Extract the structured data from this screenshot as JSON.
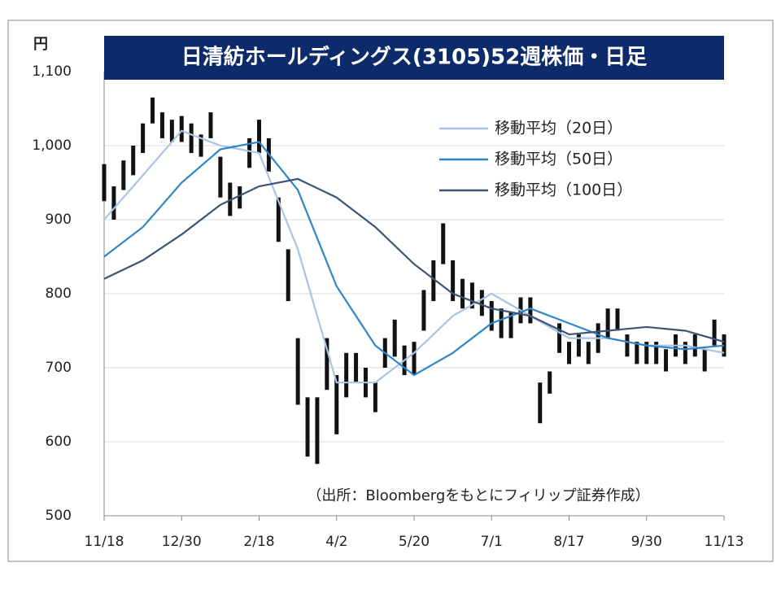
{
  "chart_data": {
    "type": "candlestick",
    "title": "日清紡ホールディングス(3105)52週株価・日足",
    "y_unit": "円",
    "note": "（出所：Bloombergをもとにフィリップ証券作成）",
    "xlim": [
      0,
      8
    ],
    "xticks": [
      {
        "value": 0,
        "label": "11/18"
      },
      {
        "value": 1,
        "label": "12/30"
      },
      {
        "value": 2,
        "label": "2/18"
      },
      {
        "value": 3,
        "label": "4/2"
      },
      {
        "value": 4,
        "label": "5/20"
      },
      {
        "value": 5,
        "label": "7/1"
      },
      {
        "value": 6,
        "label": "8/17"
      },
      {
        "value": 7,
        "label": "9/30"
      },
      {
        "value": 8,
        "label": "11/13"
      }
    ],
    "ylim": [
      500,
      1100
    ],
    "yticks": [
      500,
      600,
      700,
      800,
      900,
      {
        "value": 1000,
        "label": "1,000"
      },
      {
        "value": 1100,
        "label": "1,100"
      }
    ],
    "grid": true,
    "legend": "upper right",
    "price": {
      "color": "#111111",
      "x": [
        0,
        0.125,
        0.25,
        0.375,
        0.5,
        0.625,
        0.75,
        0.875,
        1,
        1.125,
        1.25,
        1.375,
        1.5,
        1.625,
        1.75,
        1.875,
        2,
        2.125,
        2.25,
        2.375,
        2.5,
        2.625,
        2.75,
        2.875,
        3,
        3.125,
        3.25,
        3.375,
        3.5,
        3.625,
        3.75,
        3.875,
        4,
        4.125,
        4.25,
        4.375,
        4.5,
        4.625,
        4.75,
        4.875,
        5,
        5.125,
        5.25,
        5.375,
        5.5,
        5.625,
        5.75,
        5.875,
        6,
        6.125,
        6.25,
        6.375,
        6.5,
        6.625,
        6.75,
        6.875,
        7,
        7.125,
        7.25,
        7.375,
        7.5,
        7.625,
        7.75,
        7.875,
        8
      ],
      "low": [
        925,
        900,
        940,
        960,
        990,
        1030,
        1010,
        1005,
        1005,
        990,
        985,
        1010,
        930,
        905,
        915,
        970,
        990,
        965,
        870,
        790,
        650,
        580,
        570,
        670,
        610,
        660,
        680,
        660,
        640,
        700,
        715,
        690,
        690,
        750,
        790,
        840,
        790,
        780,
        780,
        770,
        750,
        740,
        740,
        760,
        760,
        625,
        665,
        720,
        705,
        715,
        705,
        720,
        740,
        750,
        715,
        705,
        705,
        705,
        695,
        715,
        705,
        715,
        695,
        730,
        715
      ],
      "high": [
        975,
        945,
        980,
        1000,
        1030,
        1065,
        1045,
        1035,
        1040,
        1030,
        1015,
        1045,
        985,
        950,
        945,
        1010,
        1035,
        1010,
        930,
        860,
        740,
        660,
        660,
        740,
        690,
        720,
        720,
        700,
        680,
        740,
        765,
        730,
        735,
        805,
        845,
        895,
        845,
        820,
        815,
        805,
        790,
        780,
        775,
        795,
        795,
        680,
        695,
        760,
        735,
        745,
        735,
        760,
        780,
        780,
        745,
        735,
        735,
        735,
        725,
        745,
        735,
        745,
        725,
        765,
        745
      ]
    },
    "series": [
      {
        "name": "移動平均（20日）",
        "color": "#a9c4e4",
        "x": [
          0,
          0.5,
          1,
          1.5,
          2,
          2.5,
          3,
          3.5,
          4,
          4.5,
          5,
          5.5,
          6,
          6.5,
          7,
          7.5,
          8
        ],
        "values": [
          900,
          960,
          1020,
          1000,
          990,
          860,
          680,
          680,
          720,
          770,
          800,
          770,
          740,
          740,
          730,
          730,
          720
        ]
      },
      {
        "name": "移動平均（50日）",
        "color": "#2e86c8",
        "x": [
          0,
          0.5,
          1,
          1.5,
          2,
          2.5,
          3,
          3.5,
          4,
          4.5,
          5,
          5.5,
          6,
          6.5,
          7,
          7.5,
          8
        ],
        "values": [
          850,
          890,
          950,
          995,
          1005,
          940,
          810,
          730,
          690,
          720,
          760,
          780,
          760,
          740,
          730,
          725,
          730
        ]
      },
      {
        "name": "移動平均（100日）",
        "color": "#3d5573",
        "x": [
          0,
          0.5,
          1,
          1.5,
          2,
          2.5,
          3,
          3.5,
          4,
          4.5,
          5,
          5.5,
          6,
          6.5,
          7,
          7.5,
          8
        ],
        "values": [
          820,
          845,
          880,
          920,
          945,
          955,
          930,
          890,
          840,
          800,
          780,
          770,
          745,
          750,
          755,
          750,
          735
        ]
      }
    ]
  }
}
